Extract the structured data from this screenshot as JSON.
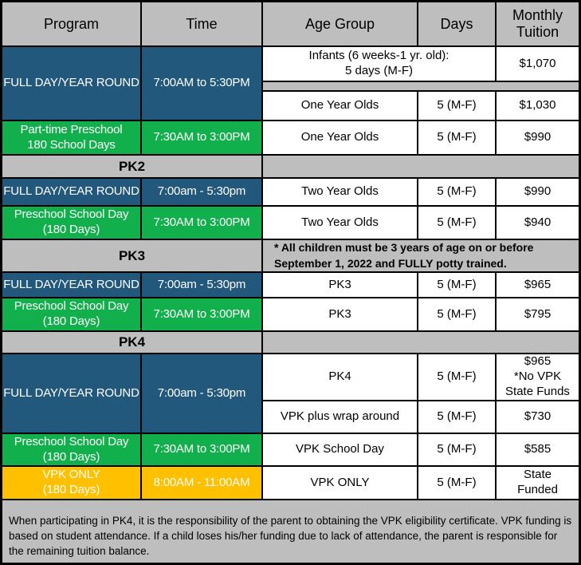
{
  "columns": [
    "Program",
    "Time",
    "Age Group",
    "Days",
    "Monthly Tuition"
  ],
  "sections": {
    "pk2_label": "PK2",
    "pk3_label": "PK3",
    "pk3_note": "* All children must be 3 years of age on or before\nSeptember 1, 2022 and FULLY potty trained.",
    "pk4_label": "PK4"
  },
  "rows": {
    "infants": {
      "program": "FULL DAY/YEAR ROUND",
      "time": "7:00AM to 5:30PM",
      "age": "Infants (6 weeks-1 yr. old):\n5 days (M-F)",
      "tuition": "$1,070"
    },
    "one_year_olds": {
      "age": "One Year Olds",
      "days": "5 (M-F)",
      "tuition": "$1,030"
    },
    "part_time_preschool": {
      "program": "Part-time Preschool\n180 School Days",
      "time": "7:30AM to 3:00PM",
      "age": "One Year Olds",
      "days": "5 (M-F)",
      "tuition": "$990"
    },
    "pk2_full_day": {
      "program": "FULL DAY/YEAR ROUND",
      "time": "7:00am - 5:30pm",
      "age": "Two Year Olds",
      "days": "5 (M-F)",
      "tuition": "$990"
    },
    "pk2_school_day": {
      "program": "Preschool School Day\n(180 Days)",
      "time": "7:30AM to 3:00PM",
      "age": "Two Year Olds",
      "days": "5 (M-F)",
      "tuition": "$940"
    },
    "pk3_full_day": {
      "program": "FULL DAY/YEAR ROUND",
      "time": "7:00am - 5:30pm",
      "age": "PK3",
      "days": "5 (M-F)",
      "tuition": "$965"
    },
    "pk3_school_day": {
      "program": "Preschool School Day\n(180 Days)",
      "time": "7:30AM to 3:00PM",
      "age": "PK3",
      "days": "5 (M-F)",
      "tuition": "$795"
    },
    "pk4_full_day": {
      "program": "FULL DAY/YEAR ROUND",
      "time": "7:00am - 5:30pm",
      "age": "PK4",
      "days": "5 (M-F)",
      "tuition": "$965\n*No VPK\nState Funds"
    },
    "pk4_wrap_around": {
      "age": "VPK plus wrap around",
      "days": "5 (M-F)",
      "tuition": "$730"
    },
    "vpk_school_day": {
      "program": "Preschool School Day\n(180 Days)",
      "time": "7:30AM to 3:00PM",
      "age": "VPK School Day",
      "days": "5 (M-F)",
      "tuition": "$585"
    },
    "vpk_only": {
      "program": "VPK ONLY\n(180 Days)",
      "time": "8:00AM - 11:00AM",
      "age": "VPK ONLY",
      "days": "5 (M-F)",
      "tuition": "State\nFunded"
    }
  },
  "footer": "When participating in PK4, it is the responsibility of the parent to obtaining the VPK eligibility certificate.  VPK funding is based on student attendance.  If a child loses his/her funding due to lack of attendance, the parent is responsible for the remaining tuition balance.",
  "colors": {
    "blue": "#23587D",
    "green": "#12B04C",
    "orange": "#FFC000",
    "gray": "#BEBEBE"
  }
}
